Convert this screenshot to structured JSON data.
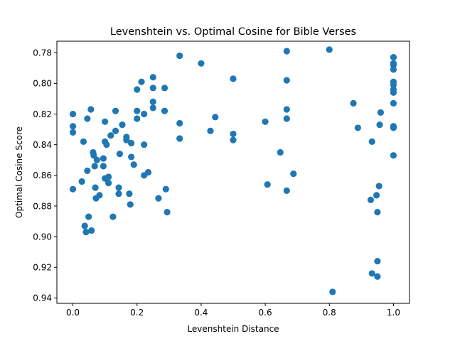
{
  "chart_data": {
    "type": "scatter",
    "title": "Levenshtein vs. Optimal Cosine for Bible Verses",
    "xlabel": "Levenshtein Distance",
    "ylabel": "Optimal Cosine Score",
    "xlim": [
      -0.05,
      1.05
    ],
    "ylim": [
      0.7725,
      0.9435
    ],
    "y_inverted": true,
    "grid": false,
    "legend": "none",
    "marker_color": "#1f77b4",
    "x_ticks": [
      "0.0",
      "0.2",
      "0.4",
      "0.6",
      "0.8",
      "1.0"
    ],
    "y_ticks": [
      "0.78",
      "0.80",
      "0.82",
      "0.84",
      "0.86",
      "0.88",
      "0.90",
      "0.92",
      "0.94"
    ],
    "points": [
      {
        "x": 0.0,
        "y": 0.82
      },
      {
        "x": 0.0,
        "y": 0.828
      },
      {
        "x": 0.0,
        "y": 0.832
      },
      {
        "x": 0.0,
        "y": 0.869
      },
      {
        "x": 0.028,
        "y": 0.864
      },
      {
        "x": 0.033,
        "y": 0.838
      },
      {
        "x": 0.037,
        "y": 0.893
      },
      {
        "x": 0.041,
        "y": 0.897
      },
      {
        "x": 0.045,
        "y": 0.823
      },
      {
        "x": 0.045,
        "y": 0.857
      },
      {
        "x": 0.049,
        "y": 0.887
      },
      {
        "x": 0.056,
        "y": 0.817
      },
      {
        "x": 0.058,
        "y": 0.896
      },
      {
        "x": 0.063,
        "y": 0.845
      },
      {
        "x": 0.065,
        "y": 0.847
      },
      {
        "x": 0.068,
        "y": 0.854
      },
      {
        "x": 0.07,
        "y": 0.868
      },
      {
        "x": 0.072,
        "y": 0.875
      },
      {
        "x": 0.075,
        "y": 0.85
      },
      {
        "x": 0.083,
        "y": 0.873
      },
      {
        "x": 0.095,
        "y": 0.849
      },
      {
        "x": 0.095,
        "y": 0.854
      },
      {
        "x": 0.1,
        "y": 0.825
      },
      {
        "x": 0.1,
        "y": 0.838
      },
      {
        "x": 0.1,
        "y": 0.862
      },
      {
        "x": 0.105,
        "y": 0.84
      },
      {
        "x": 0.111,
        "y": 0.861
      },
      {
        "x": 0.111,
        "y": 0.865
      },
      {
        "x": 0.118,
        "y": 0.834
      },
      {
        "x": 0.125,
        "y": 0.887
      },
      {
        "x": 0.133,
        "y": 0.818
      },
      {
        "x": 0.133,
        "y": 0.831
      },
      {
        "x": 0.143,
        "y": 0.868
      },
      {
        "x": 0.143,
        "y": 0.872
      },
      {
        "x": 0.146,
        "y": 0.846
      },
      {
        "x": 0.154,
        "y": 0.827
      },
      {
        "x": 0.167,
        "y": 0.835
      },
      {
        "x": 0.167,
        "y": 0.837
      },
      {
        "x": 0.176,
        "y": 0.872
      },
      {
        "x": 0.179,
        "y": 0.879
      },
      {
        "x": 0.182,
        "y": 0.839
      },
      {
        "x": 0.182,
        "y": 0.848
      },
      {
        "x": 0.19,
        "y": 0.853
      },
      {
        "x": 0.2,
        "y": 0.804
      },
      {
        "x": 0.2,
        "y": 0.818
      },
      {
        "x": 0.2,
        "y": 0.823
      },
      {
        "x": 0.214,
        "y": 0.799
      },
      {
        "x": 0.222,
        "y": 0.82
      },
      {
        "x": 0.222,
        "y": 0.84
      },
      {
        "x": 0.222,
        "y": 0.86
      },
      {
        "x": 0.235,
        "y": 0.858
      },
      {
        "x": 0.25,
        "y": 0.796
      },
      {
        "x": 0.25,
        "y": 0.803
      },
      {
        "x": 0.25,
        "y": 0.812
      },
      {
        "x": 0.25,
        "y": 0.816
      },
      {
        "x": 0.267,
        "y": 0.875
      },
      {
        "x": 0.286,
        "y": 0.803
      },
      {
        "x": 0.286,
        "y": 0.818
      },
      {
        "x": 0.29,
        "y": 0.869
      },
      {
        "x": 0.294,
        "y": 0.884
      },
      {
        "x": 0.333,
        "y": 0.782
      },
      {
        "x": 0.333,
        "y": 0.826
      },
      {
        "x": 0.333,
        "y": 0.836
      },
      {
        "x": 0.4,
        "y": 0.787
      },
      {
        "x": 0.429,
        "y": 0.831
      },
      {
        "x": 0.444,
        "y": 0.822
      },
      {
        "x": 0.5,
        "y": 0.797
      },
      {
        "x": 0.5,
        "y": 0.833
      },
      {
        "x": 0.5,
        "y": 0.837
      },
      {
        "x": 0.6,
        "y": 0.825
      },
      {
        "x": 0.607,
        "y": 0.866
      },
      {
        "x": 0.647,
        "y": 0.845
      },
      {
        "x": 0.667,
        "y": 0.779
      },
      {
        "x": 0.667,
        "y": 0.798
      },
      {
        "x": 0.667,
        "y": 0.817
      },
      {
        "x": 0.667,
        "y": 0.823
      },
      {
        "x": 0.667,
        "y": 0.87
      },
      {
        "x": 0.688,
        "y": 0.859
      },
      {
        "x": 0.8,
        "y": 0.778
      },
      {
        "x": 0.81,
        "y": 0.936
      },
      {
        "x": 0.875,
        "y": 0.813
      },
      {
        "x": 0.889,
        "y": 0.829
      },
      {
        "x": 0.929,
        "y": 0.876
      },
      {
        "x": 0.933,
        "y": 0.838
      },
      {
        "x": 0.933,
        "y": 0.924
      },
      {
        "x": 0.947,
        "y": 0.873
      },
      {
        "x": 0.95,
        "y": 0.884
      },
      {
        "x": 0.95,
        "y": 0.916
      },
      {
        "x": 0.95,
        "y": 0.926
      },
      {
        "x": 0.955,
        "y": 0.867
      },
      {
        "x": 0.957,
        "y": 0.827
      },
      {
        "x": 0.96,
        "y": 0.819
      },
      {
        "x": 1.0,
        "y": 0.783
      },
      {
        "x": 1.0,
        "y": 0.787
      },
      {
        "x": 1.0,
        "y": 0.788
      },
      {
        "x": 1.0,
        "y": 0.791
      },
      {
        "x": 1.0,
        "y": 0.799
      },
      {
        "x": 1.0,
        "y": 0.801
      },
      {
        "x": 1.0,
        "y": 0.804
      },
      {
        "x": 1.0,
        "y": 0.806
      },
      {
        "x": 1.0,
        "y": 0.813
      },
      {
        "x": 1.0,
        "y": 0.828
      },
      {
        "x": 1.0,
        "y": 0.829
      },
      {
        "x": 1.0,
        "y": 0.847
      }
    ]
  }
}
